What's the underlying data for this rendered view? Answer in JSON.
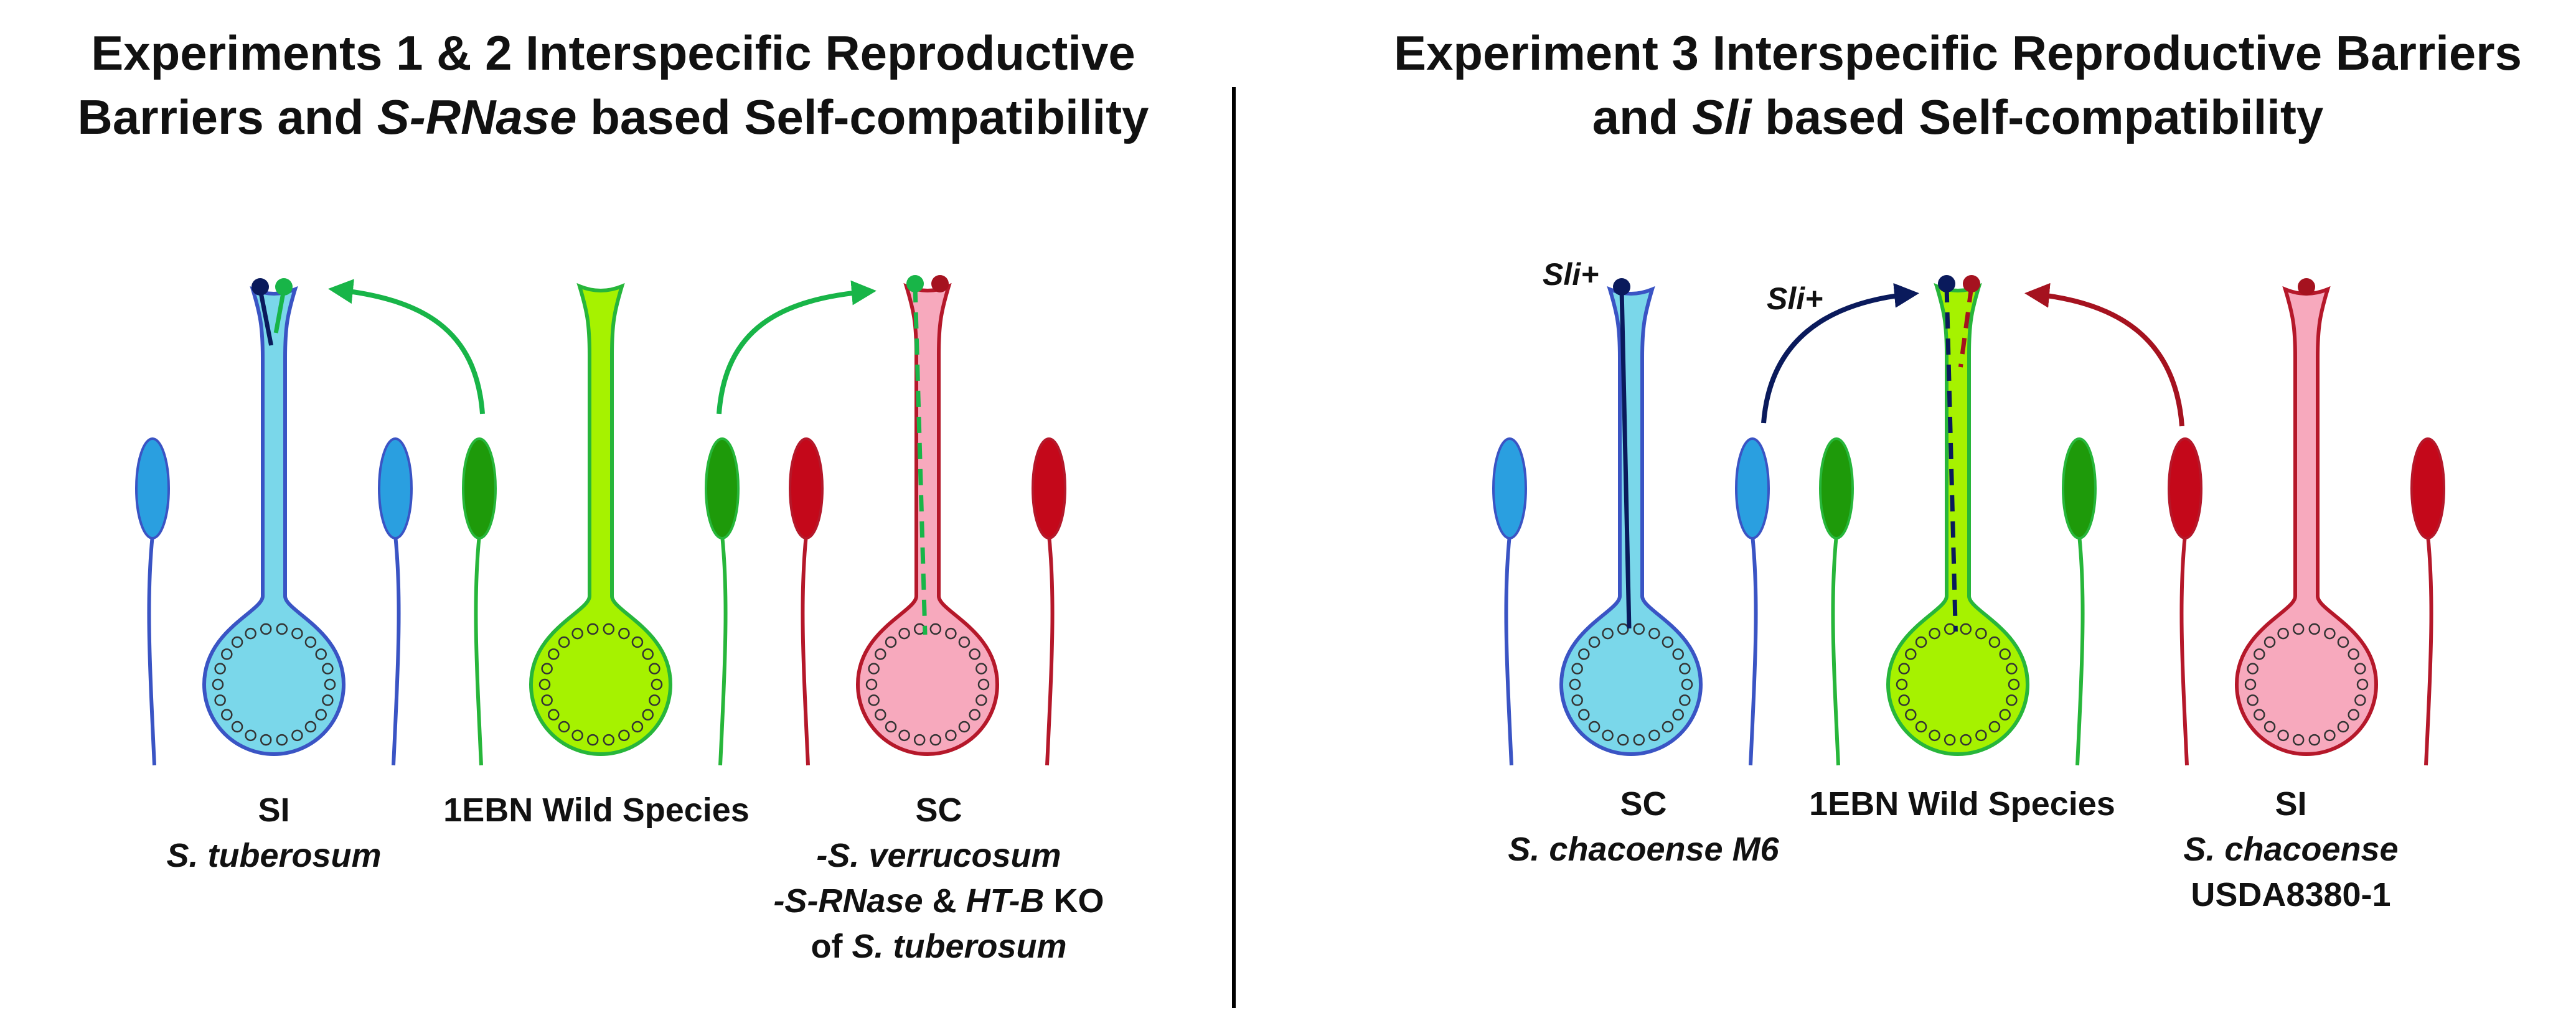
{
  "panels": {
    "left": {
      "title_line1": "Experiments 1 & 2 Interspecific Reproductive",
      "title_line2_a": "Barriers and ",
      "title_line2_italic": "S-RNase",
      "title_line2_b": " based Self-compatibility",
      "flowers": [
        {
          "line1": "SI",
          "line2_italic": "S. tuberosum",
          "color": "#7ad7ea",
          "stroke": "#3a54c4",
          "anther": "#2a9fe0"
        },
        {
          "line1": "1EBN Wild Species",
          "color": "#a6f200",
          "stroke": "#27b63a",
          "anther": "#1e9a0a"
        },
        {
          "line1": "SC",
          "line2_italic": "-S. verrucosum",
          "line3_italic_a": "-S-RNase",
          "line3_mid": " & ",
          "line3_italic_b": "HT-B",
          "line3_end": " KO",
          "line4_plain": "of ",
          "line4_italic": "S. tuberosum",
          "color": "#f7a9bd",
          "stroke": "#b5182a",
          "anther": "#c4081a"
        }
      ]
    },
    "right": {
      "title_line1": "Experiment 3 Interspecific Reproductive Barriers",
      "title_line2_a": "and ",
      "title_line2_italic": "Sli",
      "title_line2_b": " based Self-compatibility",
      "sli_labels": [
        "Sli+",
        "Sli+"
      ],
      "flowers": [
        {
          "line1": "SC",
          "line2_italic": "S. chacoense M6",
          "color": "#7ad7ea",
          "stroke": "#3a54c4",
          "anther": "#2a9fe0"
        },
        {
          "line1": "1EBN Wild Species",
          "color": "#a6f200",
          "stroke": "#27b63a",
          "anther": "#1e9a0a"
        },
        {
          "line1": "SI",
          "line2_italic": "S. chacoense",
          "line3_plain": "USDA8380-1",
          "color": "#f7a9bd",
          "stroke": "#b5182a",
          "anther": "#c4081a"
        }
      ]
    }
  },
  "colors": {
    "blue_pollen": "#0a1a5c",
    "green_pollen": "#18b548",
    "red_pollen": "#a5121f",
    "green_arrow": "#18b548",
    "blue_arrow": "#0a1a5c",
    "red_arrow": "#a5121f",
    "divider": "#000000"
  }
}
